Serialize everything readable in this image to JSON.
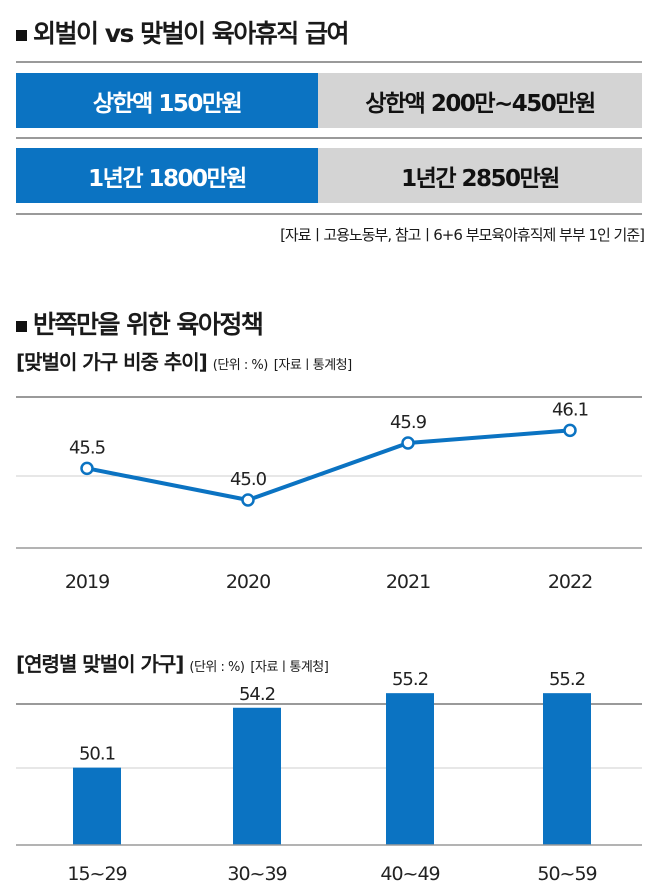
{
  "section1": {
    "title": "외벌이 vs 맞벌이 육아휴직 급여",
    "rows": [
      {
        "single": "상한액 150만원",
        "dual": "상한액 200만~450만원"
      },
      {
        "single": "1년간 1800만원",
        "dual": "1년간 2850만원"
      }
    ],
    "source": "[자료ㅣ고용노동부, 참고ㅣ6+6 부모육아휴직제 부부 1인 기준]"
  },
  "section2": {
    "title": "반쪽만을 위한 육아정책"
  },
  "colors": {
    "blue": "#0b73c2",
    "gray": "#d4d4d4"
  },
  "chart_data": [
    {
      "type": "line",
      "title": "[맞벌이 가구 비중 추이]",
      "unit": "(단위 : %)",
      "source": "[자료ㅣ통계청]",
      "categories": [
        "2019",
        "2020",
        "2021",
        "2022"
      ],
      "values": [
        45.5,
        45.0,
        45.9,
        46.1
      ],
      "labels": [
        "45.5",
        "45.0",
        "45.9",
        "46.1"
      ]
    },
    {
      "type": "bar",
      "title": "[연령별 맞벌이 가구]",
      "unit": "(단위 : %)",
      "source": "[자료ㅣ통계청]",
      "categories": [
        "15~29",
        "30~39",
        "40~49",
        "50~59"
      ],
      "values": [
        50.1,
        54.2,
        55.2,
        55.2
      ],
      "labels": [
        "50.1",
        "54.2",
        "55.2",
        "55.2"
      ]
    }
  ]
}
